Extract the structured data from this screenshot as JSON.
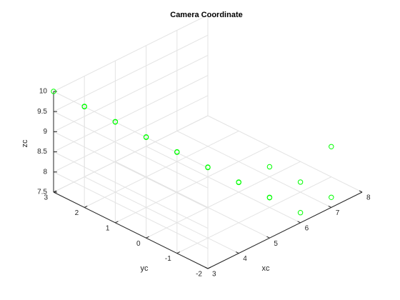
{
  "colors": {
    "background": "#ffffff",
    "grid": "#e3e3e3",
    "axis": "#262626",
    "marker": "#00ff00"
  },
  "chart_data": {
    "type": "scatter",
    "projection": "3d",
    "title": "Camera Coordinate",
    "xlabel": "xc",
    "ylabel": "yc",
    "zlabel": "zc",
    "xlim": [
      3,
      8
    ],
    "ylim": [
      -2,
      3
    ],
    "zlim": [
      7.5,
      10
    ],
    "xticks": [
      3,
      4,
      5,
      6,
      7,
      8
    ],
    "yticks": [
      -2,
      -1,
      0,
      1,
      2,
      3
    ],
    "zticks": [
      7.5,
      8,
      8.5,
      9,
      9.5,
      10
    ],
    "xtick_labels": [
      "3",
      "4",
      "5",
      "6",
      "7",
      "8"
    ],
    "ytick_labels": [
      "-2",
      "-1",
      "0",
      "1",
      "2",
      "3"
    ],
    "ztick_labels": [
      "7.5",
      "8",
      "8.5",
      "9",
      "9.5",
      "10"
    ],
    "grid": true,
    "marker": "circle",
    "points": [
      {
        "x": 3.0,
        "y": 3.0,
        "z": 10.0
      },
      {
        "x": 3.0,
        "y": 2.0,
        "z": 10.0
      },
      {
        "x": 3.0,
        "y": 1.0,
        "z": 10.0
      },
      {
        "x": 3.0,
        "y": 0.0,
        "z": 10.0
      },
      {
        "x": 4.0,
        "y": 3.0,
        "z": 9.25
      },
      {
        "x": 4.0,
        "y": 2.0,
        "z": 9.25
      },
      {
        "x": 4.0,
        "y": 1.0,
        "z": 9.25
      },
      {
        "x": 4.0,
        "y": 0.0,
        "z": 9.25
      },
      {
        "x": 4.0,
        "y": -1.0,
        "z": 9.25
      },
      {
        "x": 5.0,
        "y": 1.0,
        "z": 8.5
      },
      {
        "x": 5.0,
        "y": 0.0,
        "z": 8.5
      },
      {
        "x": 5.0,
        "y": -1.0,
        "z": 8.5
      },
      {
        "x": 5.0,
        "y": -2.0,
        "z": 8.5
      },
      {
        "x": 6.0,
        "y": 0.0,
        "z": 7.75
      },
      {
        "x": 6.0,
        "y": -1.0,
        "z": 7.75
      },
      {
        "x": 6.0,
        "y": -2.0,
        "z": 7.75
      },
      {
        "x": 7.0,
        "y": 0.0,
        "z": 7.75
      },
      {
        "x": 7.0,
        "y": -1.0,
        "z": 7.75
      },
      {
        "x": 7.0,
        "y": -2.0,
        "z": 7.75
      },
      {
        "x": 8.0,
        "y": -1.0,
        "z": 8.25
      }
    ]
  }
}
